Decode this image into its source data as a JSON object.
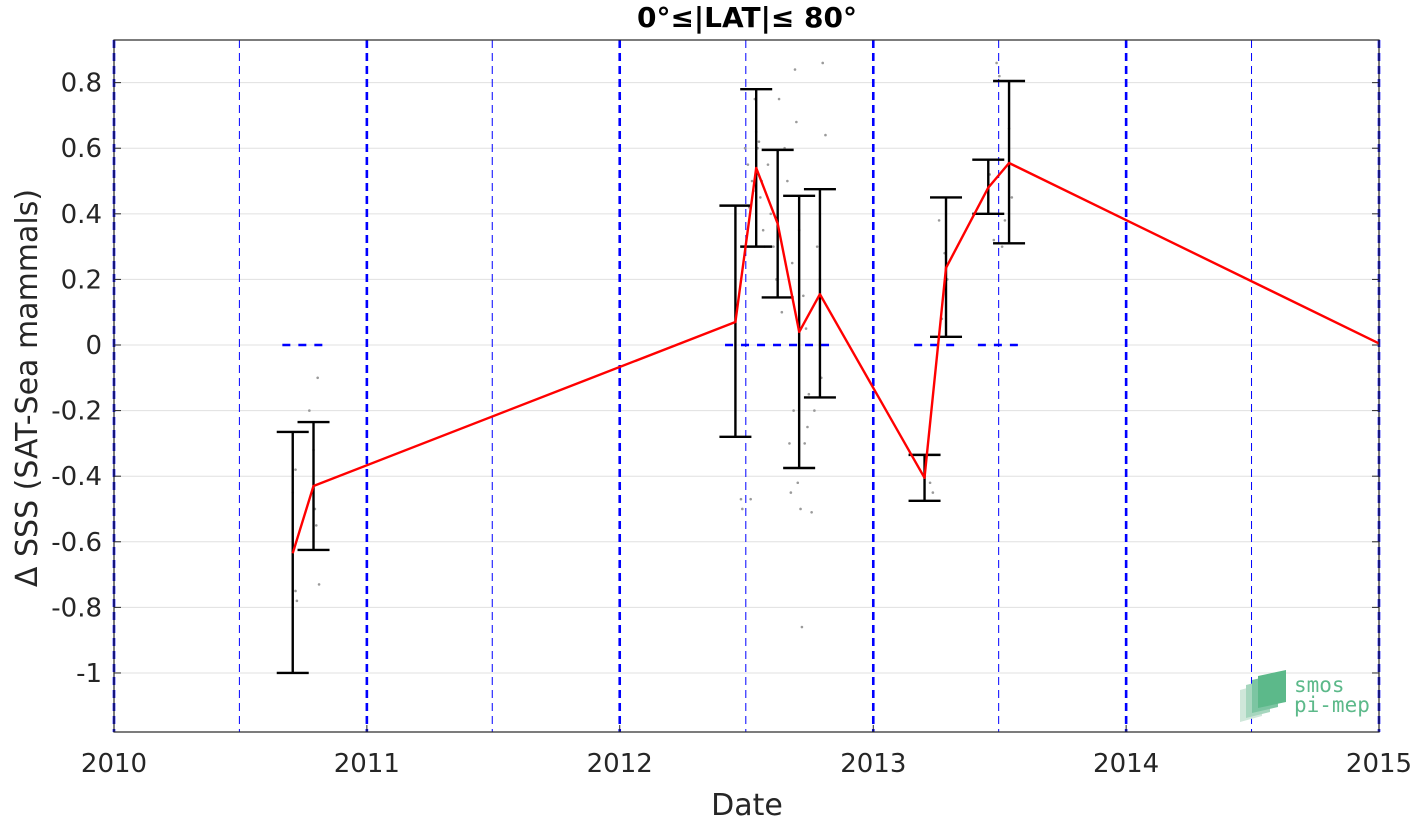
{
  "chart_data": {
    "type": "line",
    "title": "0°≤|LAT|≤ 80°",
    "xlabel": "Date",
    "ylabel": "Δ SSS (SAT-Sea mammals)",
    "xlim": [
      "2010-01-01",
      "2015-01-01"
    ],
    "ylim": [
      -1.18,
      0.93
    ],
    "x_ticks": [
      "2010",
      "2011",
      "2012",
      "2013",
      "2014",
      "2015"
    ],
    "y_ticks": [
      0.8,
      0.6,
      0.4,
      0.2,
      0,
      -0.2,
      -0.4,
      -0.6,
      -0.8,
      -1
    ],
    "y_tick_labels": [
      "0.8",
      "0.6",
      "0.4",
      "0.2",
      "0",
      "-0.2",
      "-0.4",
      "-0.6",
      "-0.8",
      "-1"
    ],
    "grid": "horizontal",
    "colors": {
      "mean_line": "#ff0000",
      "errorbar": "#000000",
      "year_lines": "#0000ff",
      "scatter": "#9a9a9a",
      "grid": "#e0e0e0"
    },
    "year_lines": [
      "2010-01-01",
      "2011-01-01",
      "2012-01-01",
      "2013-01-01",
      "2014-01-01",
      "2015-01-01"
    ],
    "half_year_lines": [
      "2010-07-01",
      "2011-07-01",
      "2012-07-01",
      "2013-07-01",
      "2014-07-01"
    ],
    "mean_series": {
      "x": [
        "2010-09-16",
        "2010-10-16",
        "2012-06-16",
        "2012-07-16",
        "2012-08-16",
        "2012-09-16",
        "2012-10-16",
        "2013-03-16",
        "2013-04-16",
        "2013-06-16",
        "2013-07-16",
        "2015-01-01"
      ],
      "y": [
        -0.635,
        -0.43,
        0.07,
        0.54,
        0.37,
        0.04,
        0.155,
        -0.405,
        0.235,
        0.48,
        0.555,
        0.005
      ]
    },
    "error_bars": [
      {
        "x": "2010-09-16",
        "low": -1.0,
        "high": -0.265
      },
      {
        "x": "2010-10-16",
        "low": -0.625,
        "high": -0.235
      },
      {
        "x": "2012-06-16",
        "low": -0.28,
        "high": 0.425
      },
      {
        "x": "2012-07-16",
        "low": 0.3,
        "high": 0.78
      },
      {
        "x": "2012-08-16",
        "low": 0.145,
        "high": 0.595
      },
      {
        "x": "2012-09-16",
        "low": -0.375,
        "high": 0.455
      },
      {
        "x": "2012-10-16",
        "low": -0.16,
        "high": 0.475
      },
      {
        "x": "2013-03-16",
        "low": -0.475,
        "high": -0.335
      },
      {
        "x": "2013-04-16",
        "low": 0.025,
        "high": 0.45
      },
      {
        "x": "2013-06-16",
        "low": 0.4,
        "high": 0.565
      },
      {
        "x": "2013-07-16",
        "low": 0.31,
        "high": 0.805
      }
    ],
    "zero_dashes": [
      {
        "from": "2010-09-01",
        "to": "2010-10-31"
      },
      {
        "from": "2012-06-01",
        "to": "2012-10-31"
      },
      {
        "from": "2013-03-01",
        "to": "2013-04-30"
      },
      {
        "from": "2013-06-01",
        "to": "2013-07-31"
      }
    ],
    "scatter": [
      {
        "x": "2010-09-16",
        "y": -0.45
      },
      {
        "x": "2010-09-18",
        "y": -0.62
      },
      {
        "x": "2010-09-20",
        "y": -0.75
      },
      {
        "x": "2010-09-22",
        "y": -0.78
      },
      {
        "x": "2010-09-20",
        "y": -0.38
      },
      {
        "x": "2010-10-10",
        "y": -0.2
      },
      {
        "x": "2010-10-14",
        "y": -0.45
      },
      {
        "x": "2010-10-18",
        "y": -0.5
      },
      {
        "x": "2010-10-20",
        "y": -0.55
      },
      {
        "x": "2010-10-22",
        "y": -0.1
      },
      {
        "x": "2010-10-24",
        "y": -0.73
      },
      {
        "x": "2010-10-16",
        "y": -0.32
      },
      {
        "x": "2012-06-24",
        "y": -0.47
      },
      {
        "x": "2012-06-26",
        "y": -0.5
      },
      {
        "x": "2012-06-30",
        "y": 0.6
      },
      {
        "x": "2012-07-04",
        "y": 0.55
      },
      {
        "x": "2012-07-06",
        "y": 0.42
      },
      {
        "x": "2012-07-08",
        "y": -0.47
      },
      {
        "x": "2012-07-10",
        "y": 0.5
      },
      {
        "x": "2012-07-12",
        "y": 0.47
      },
      {
        "x": "2012-07-14",
        "y": 0.75
      },
      {
        "x": "2012-07-16",
        "y": 0.65
      },
      {
        "x": "2012-07-18",
        "y": 0.6
      },
      {
        "x": "2012-07-20",
        "y": 0.62
      },
      {
        "x": "2012-07-22",
        "y": 0.45
      },
      {
        "x": "2012-07-24",
        "y": 0.5
      },
      {
        "x": "2012-07-26",
        "y": 0.35
      },
      {
        "x": "2012-07-28",
        "y": 0.3
      },
      {
        "x": "2012-08-02",
        "y": 0.55
      },
      {
        "x": "2012-08-06",
        "y": 0.4
      },
      {
        "x": "2012-08-10",
        "y": 0.3
      },
      {
        "x": "2012-08-14",
        "y": 0.2
      },
      {
        "x": "2012-08-18",
        "y": 0.75
      },
      {
        "x": "2012-08-22",
        "y": 0.1
      },
      {
        "x": "2012-08-26",
        "y": 0.6
      },
      {
        "x": "2012-08-30",
        "y": 0.5
      },
      {
        "x": "2012-09-02",
        "y": -0.3
      },
      {
        "x": "2012-09-04",
        "y": -0.45
      },
      {
        "x": "2012-09-06",
        "y": 0.25
      },
      {
        "x": "2012-09-08",
        "y": -0.2
      },
      {
        "x": "2012-09-10",
        "y": 0.84
      },
      {
        "x": "2012-09-12",
        "y": 0.68
      },
      {
        "x": "2012-09-14",
        "y": -0.42
      },
      {
        "x": "2012-09-16",
        "y": 0.35
      },
      {
        "x": "2012-09-18",
        "y": -0.5
      },
      {
        "x": "2012-09-20",
        "y": -0.86
      },
      {
        "x": "2012-09-22",
        "y": 0.15
      },
      {
        "x": "2012-09-24",
        "y": -0.3
      },
      {
        "x": "2012-09-26",
        "y": 0.05
      },
      {
        "x": "2012-09-28",
        "y": -0.25
      },
      {
        "x": "2012-09-30",
        "y": -0.15
      },
      {
        "x": "2012-10-04",
        "y": -0.51
      },
      {
        "x": "2012-10-08",
        "y": -0.2
      },
      {
        "x": "2012-10-12",
        "y": 0.3
      },
      {
        "x": "2012-10-16",
        "y": 0.2
      },
      {
        "x": "2012-10-20",
        "y": 0.86
      },
      {
        "x": "2012-10-24",
        "y": 0.64
      },
      {
        "x": "2012-10-18",
        "y": -0.1
      },
      {
        "x": "2013-03-24",
        "y": -0.42
      },
      {
        "x": "2013-03-28",
        "y": -0.45
      },
      {
        "x": "2013-04-06",
        "y": 0.38
      },
      {
        "x": "2013-04-10",
        "y": 0.08
      },
      {
        "x": "2013-04-14",
        "y": 0.28
      },
      {
        "x": "2013-04-18",
        "y": 0.2
      },
      {
        "x": "2013-06-18",
        "y": 0.52
      },
      {
        "x": "2013-06-24",
        "y": 0.32
      },
      {
        "x": "2013-06-28",
        "y": 0.86
      },
      {
        "x": "2013-07-02",
        "y": 0.82
      },
      {
        "x": "2013-07-10",
        "y": 0.38
      },
      {
        "x": "2013-07-16",
        "y": 0.66
      },
      {
        "x": "2013-07-20",
        "y": 0.45
      },
      {
        "x": "2013-07-06",
        "y": 0.3
      }
    ]
  },
  "watermark": {
    "line1": "smos",
    "line2": "pi-mep"
  }
}
